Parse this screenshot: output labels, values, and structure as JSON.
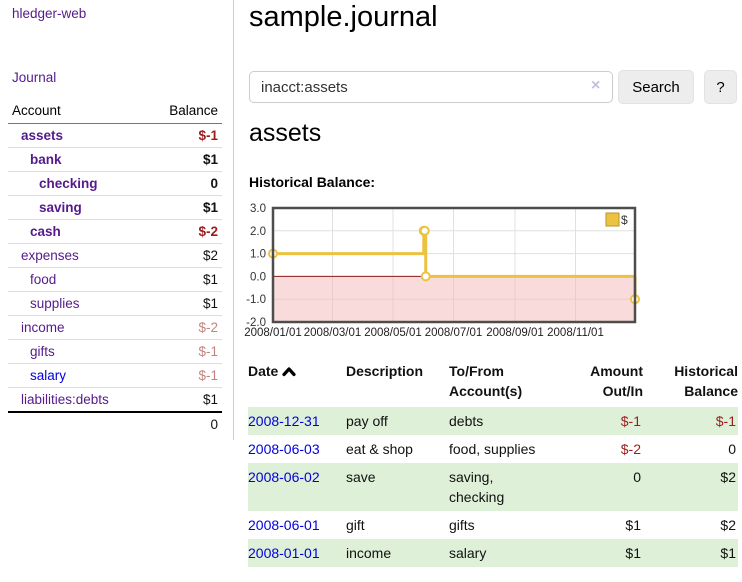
{
  "sidebar": {
    "brand": "hledger-web",
    "nav": {
      "journal": "Journal"
    },
    "accounts_table": {
      "headers": {
        "account": "Account",
        "balance": "Balance"
      },
      "rows": [
        {
          "name": "assets",
          "indent": 1,
          "bold": true,
          "balance": "$-1",
          "balance_style": "negative"
        },
        {
          "name": "bank",
          "indent": 2,
          "bold": true,
          "balance": "$1",
          "balance_style": "normal"
        },
        {
          "name": "checking",
          "indent": 3,
          "bold": true,
          "balance": "0",
          "balance_style": "normal"
        },
        {
          "name": "saving",
          "indent": 3,
          "bold": true,
          "balance": "$1",
          "balance_style": "normal"
        },
        {
          "name": "cash",
          "indent": 2,
          "bold": true,
          "balance": "$-2",
          "balance_style": "negative"
        },
        {
          "name": "expenses",
          "indent": 1,
          "bold": false,
          "balance": "$2",
          "balance_style": "normal"
        },
        {
          "name": "food",
          "indent": 2,
          "bold": false,
          "balance": "$1",
          "balance_style": "normal"
        },
        {
          "name": "supplies",
          "indent": 2,
          "bold": false,
          "balance": "$1",
          "balance_style": "normal"
        },
        {
          "name": "income",
          "indent": 1,
          "bold": false,
          "balance": "$-2",
          "balance_style": "negative-dim"
        },
        {
          "name": "gifts",
          "indent": 2,
          "bold": false,
          "balance": "$-1",
          "balance_style": "negative-dim"
        },
        {
          "name": "salary",
          "indent": 2,
          "bold": false,
          "link_style": "unvisited",
          "balance": "$-1",
          "balance_style": "negative-dim"
        },
        {
          "name": "liabilities:debts",
          "indent": 1,
          "bold": false,
          "balance": "$1",
          "balance_style": "normal"
        }
      ],
      "total": "0"
    }
  },
  "header": {
    "title": "sample.journal"
  },
  "search": {
    "value": "inacct:assets",
    "clear_icon": "×",
    "button_label": "Search",
    "help_label": "?"
  },
  "account_page": {
    "heading": "assets",
    "chart_label": "Historical Balance:"
  },
  "colors": {
    "link_visited": "#551a8b",
    "link_unvisited": "#0000e0",
    "negative": "#9d1c1c",
    "negative_dim": "#c5827e",
    "row_highlight": "#dff0d8"
  },
  "chart_data": {
    "type": "line",
    "title": "Historical Balance",
    "style": "steps",
    "series": [
      {
        "name": "$",
        "color": "#edc240",
        "points": [
          [
            "2008-01-01",
            1
          ],
          [
            "2008-06-01",
            2
          ],
          [
            "2008-06-02",
            2
          ],
          [
            "2008-06-03",
            0
          ],
          [
            "2008-12-31",
            -1
          ]
        ]
      }
    ],
    "x_range": [
      "2008-01-01",
      "2008-12-31"
    ],
    "ylim": [
      -2,
      3
    ],
    "y_ticks": [
      3,
      2,
      1,
      0,
      -1,
      -2
    ],
    "x_ticks": [
      "2008/01/01",
      "2008/03/01",
      "2008/05/01",
      "2008/07/01",
      "2008/09/01",
      "2008/11/01"
    ],
    "grid": true,
    "legend_position": "top-right",
    "negative_region_color": "#f5b8b8",
    "zero_line_color": "#8b1d1d"
  },
  "register_table": {
    "columns": [
      {
        "label": "Date",
        "align": "left",
        "sorted": true,
        "sort_icon": "chevron-up-icon"
      },
      {
        "label": "Description",
        "align": "left"
      },
      {
        "label": "To/From\nAccount(s)",
        "align": "left"
      },
      {
        "label": "Amount\nOut/In",
        "align": "right"
      },
      {
        "label": "Historical\nBalance",
        "align": "right"
      }
    ],
    "rows": [
      {
        "date": "2008-12-31",
        "description": "pay off",
        "accounts": "debts",
        "amount": "$-1",
        "amount_negative": true,
        "balance": "$-1",
        "balance_negative": true,
        "highlight": true
      },
      {
        "date": "2008-06-03",
        "description": "eat & shop",
        "accounts": "food, supplies",
        "amount": "$-2",
        "amount_negative": true,
        "balance": "0",
        "balance_negative": false,
        "highlight": false
      },
      {
        "date": "2008-06-02",
        "description": "save",
        "accounts": "saving,\nchecking",
        "amount": "0",
        "amount_negative": false,
        "balance": "$2",
        "balance_negative": false,
        "highlight": true
      },
      {
        "date": "2008-06-01",
        "description": "gift",
        "accounts": "gifts",
        "amount": "$1",
        "amount_negative": false,
        "balance": "$2",
        "balance_negative": false,
        "highlight": false
      },
      {
        "date": "2008-01-01",
        "description": "income",
        "accounts": "salary",
        "amount": "$1",
        "amount_negative": false,
        "balance": "$1",
        "balance_negative": false,
        "highlight": true
      }
    ]
  }
}
